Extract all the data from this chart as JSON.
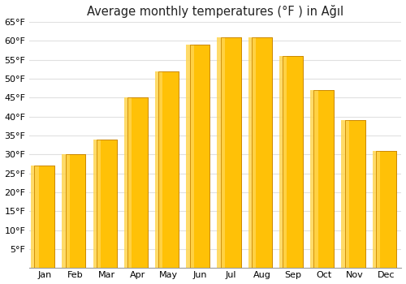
{
  "title": "Average monthly temperatures (°F ) in Ağıl",
  "months": [
    "Jan",
    "Feb",
    "Mar",
    "Apr",
    "May",
    "Jun",
    "Jul",
    "Aug",
    "Sep",
    "Oct",
    "Nov",
    "Dec"
  ],
  "values": [
    27,
    30,
    34,
    45,
    52,
    59,
    61,
    61,
    56,
    47,
    39,
    31
  ],
  "ylim": [
    0,
    65
  ],
  "yticks": [
    5,
    10,
    15,
    20,
    25,
    30,
    35,
    40,
    45,
    50,
    55,
    60,
    65
  ],
  "bar_color_left": "#FFD54F",
  "bar_color_right": "#FFA000",
  "bar_color_main": "#FFC107",
  "background_color": "#ffffff",
  "grid_color": "#e0e0e0",
  "title_fontsize": 10.5,
  "tick_fontsize": 8,
  "bar_edge_color": "#cc8800",
  "bar_width": 0.65
}
